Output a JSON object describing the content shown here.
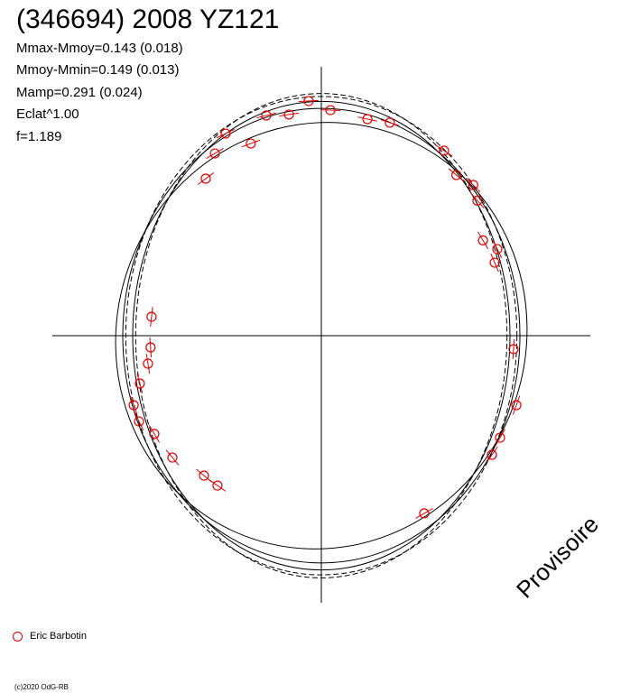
{
  "chart_data": {
    "type": "scatter",
    "title": "(346694) 2008 YZ121",
    "stats": [
      "Mmax-Mmoy=0.143 (0.018)",
      "Mmoy-Mmin=0.149 (0.013)",
      "Mamp=0.291 (0.024)",
      "Eclat^1.00",
      "f=1.189"
    ],
    "legend": [
      {
        "name": "Eric Barbotin",
        "color": "#e00000",
        "marker": "open-circle"
      }
    ],
    "watermark": "Provisoire",
    "copyright": "(c)2020 OdG-RB",
    "axis_range": [
      -1.1,
      1.1
    ],
    "points": [
      {
        "x": -0.064,
        "y": 1.182
      },
      {
        "x": 0.046,
        "y": 1.136
      },
      {
        "x": -0.163,
        "y": 1.114
      },
      {
        "x": -0.277,
        "y": 1.109
      },
      {
        "x": 0.232,
        "y": 1.091
      },
      {
        "x": 0.345,
        "y": 1.073
      },
      {
        "x": -0.482,
        "y": 1.018
      },
      {
        "x": -0.355,
        "y": 0.968
      },
      {
        "x": -0.536,
        "y": 0.918
      },
      {
        "x": 0.618,
        "y": 0.932
      },
      {
        "x": 0.68,
        "y": 0.809
      },
      {
        "x": -0.582,
        "y": 0.791
      },
      {
        "x": 0.765,
        "y": 0.759
      },
      {
        "x": 0.786,
        "y": 0.68
      },
      {
        "x": 0.814,
        "y": 0.48
      },
      {
        "x": 0.886,
        "y": 0.436
      },
      {
        "x": 0.873,
        "y": 0.368
      },
      {
        "x": -0.855,
        "y": 0.095
      },
      {
        "x": -0.86,
        "y": -0.059
      },
      {
        "x": 0.968,
        "y": -0.068
      },
      {
        "x": -0.873,
        "y": -0.141
      },
      {
        "x": -0.914,
        "y": -0.241
      },
      {
        "x": -0.945,
        "y": -0.35
      },
      {
        "x": 0.982,
        "y": -0.35
      },
      {
        "x": -0.918,
        "y": -0.432
      },
      {
        "x": -0.841,
        "y": -0.495
      },
      {
        "x": 0.9,
        "y": -0.514
      },
      {
        "x": -0.75,
        "y": -0.614
      },
      {
        "x": 0.859,
        "y": -0.6
      },
      {
        "x": -0.591,
        "y": -0.705
      },
      {
        "x": -0.523,
        "y": -0.755
      },
      {
        "x": 0.518,
        "y": -0.895
      }
    ],
    "curves": [
      {
        "style": "solid",
        "rx": 1.0,
        "ry": 1.145
      },
      {
        "style": "solid",
        "rx": 0.95,
        "ry": 1.18
      },
      {
        "style": "dashed",
        "rx": 0.935,
        "ry": 1.22
      },
      {
        "style": "dashed",
        "rx": 0.985,
        "ry": 1.205
      },
      {
        "style": "solid",
        "rx": 1.03,
        "ry": 1.08,
        "tilt": 0.35
      }
    ]
  }
}
